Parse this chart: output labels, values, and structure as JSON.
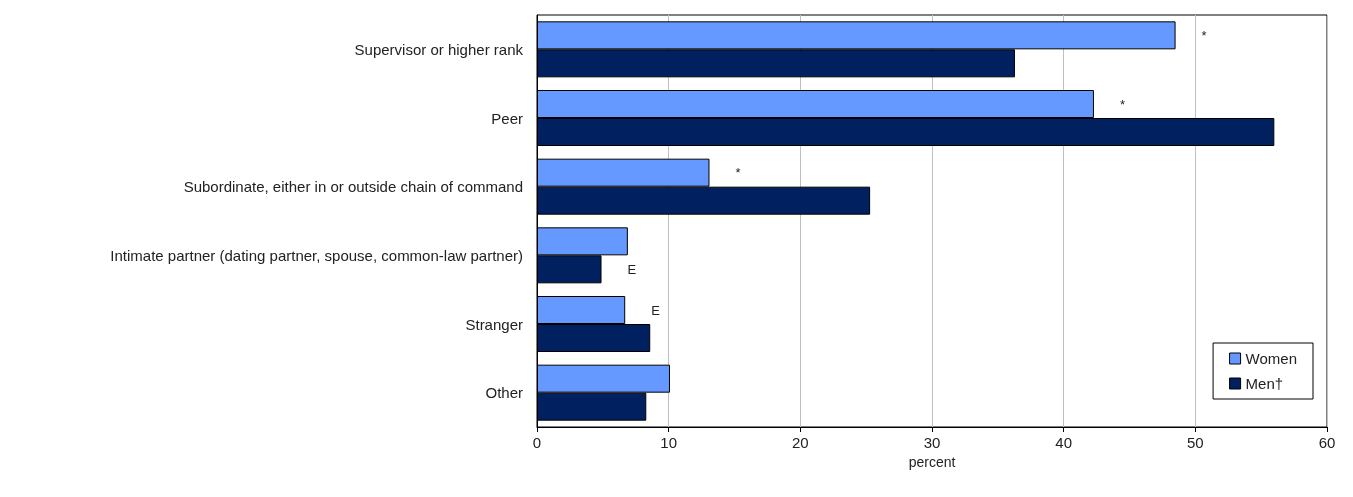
{
  "chart_data": {
    "type": "bar",
    "orientation": "horizontal",
    "xlabel": "percent",
    "categories": [
      "Supervisor or higher rank",
      "Peer",
      "Subordinate, either in or outside chain of command",
      "Intimate partner (dating partner, spouse, common-law partner)",
      "Stranger",
      "Other"
    ],
    "series": [
      {
        "name": "Women",
        "color": "#6699ff",
        "values": [
          48.5,
          42.3,
          13.1,
          6.9,
          6.7,
          10.1
        ],
        "value_labels": [
          "*",
          "*",
          "*",
          null,
          "E",
          null
        ]
      },
      {
        "name": "Men†",
        "color": "#002060",
        "values": [
          36.3,
          56.0,
          25.3,
          4.9,
          8.6,
          8.3
        ],
        "value_labels": [
          null,
          null,
          null,
          "E",
          null,
          null
        ]
      }
    ],
    "xlim": [
      0,
      60
    ],
    "xticks": [
      0,
      10,
      20,
      30,
      40,
      50,
      60
    ],
    "grid": "x",
    "legend": "bottom right"
  }
}
